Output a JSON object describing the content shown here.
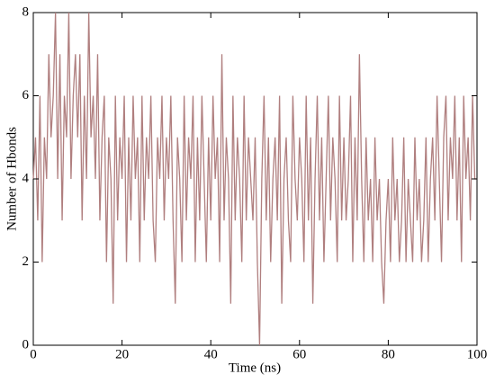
{
  "chart_data": {
    "type": "line",
    "xlabel": "Time (ns)",
    "ylabel": "Number of Hbonds",
    "color": "#b07f7f",
    "xlim": [
      0,
      100
    ],
    "xticks": [
      0,
      20,
      40,
      60,
      80,
      100
    ],
    "ylim": [
      0,
      8
    ],
    "yticks": [
      0,
      2,
      4,
      6,
      8
    ],
    "x": [
      0,
      0.5,
      1,
      1.5,
      2,
      2.5,
      3,
      3.5,
      4,
      4.5,
      5,
      5.5,
      6,
      6.5,
      7,
      7.5,
      8,
      8.5,
      9,
      9.5,
      10,
      10.5,
      11,
      11.5,
      12,
      12.5,
      13,
      13.5,
      14,
      14.5,
      15,
      15.5,
      16,
      16.5,
      17,
      17.5,
      18,
      18.5,
      19,
      19.5,
      20,
      20.5,
      21,
      21.5,
      22,
      22.5,
      23,
      23.5,
      24,
      24.5,
      25,
      25.5,
      26,
      26.5,
      27,
      27.5,
      28,
      28.5,
      29,
      29.5,
      30,
      30.5,
      31,
      31.5,
      32,
      32.5,
      33,
      33.5,
      34,
      34.5,
      35,
      35.5,
      36,
      36.5,
      37,
      37.5,
      38,
      38.5,
      39,
      39.5,
      40,
      40.5,
      41,
      41.5,
      42,
      42.5,
      43,
      43.5,
      44,
      44.5,
      45,
      45.5,
      46,
      46.5,
      47,
      47.5,
      48,
      48.5,
      49,
      49.5,
      50,
      50.5,
      51,
      51.5,
      52,
      52.5,
      53,
      53.5,
      54,
      54.5,
      55,
      55.5,
      56,
      56.5,
      57,
      57.5,
      58,
      58.5,
      59,
      59.5,
      60,
      60.5,
      61,
      61.5,
      62,
      62.5,
      63,
      63.5,
      64,
      64.5,
      65,
      65.5,
      66,
      66.5,
      67,
      67.5,
      68,
      68.5,
      69,
      69.5,
      70,
      70.5,
      71,
      71.5,
      72,
      72.5,
      73,
      73.5,
      74,
      74.5,
      75,
      75.5,
      76,
      76.5,
      77,
      77.5,
      78,
      78.5,
      79,
      79.5,
      80,
      80.5,
      81,
      81.5,
      82,
      82.5,
      83,
      83.5,
      84,
      84.5,
      85,
      85.5,
      86,
      86.5,
      87,
      87.5,
      88,
      88.5,
      89,
      89.5,
      90,
      90.5,
      91,
      91.5,
      92,
      92.5,
      93,
      93.5,
      94,
      94.5,
      95,
      95.5,
      96,
      96.5,
      97,
      97.5,
      98,
      98.5,
      99,
      99.5,
      100
    ],
    "values": [
      4,
      5,
      3,
      6,
      2,
      5,
      4,
      7,
      5,
      6,
      8,
      4,
      7,
      3,
      6,
      5,
      8,
      4,
      6,
      7,
      5,
      7,
      3,
      6,
      4,
      8,
      5,
      6,
      4,
      7,
      3,
      5,
      6,
      2,
      5,
      4,
      1,
      6,
      3,
      5,
      4,
      6,
      2,
      5,
      3,
      6,
      4,
      5,
      2,
      6,
      3,
      5,
      4,
      6,
      3,
      2,
      5,
      4,
      6,
      3,
      5,
      4,
      6,
      3,
      1,
      5,
      4,
      2,
      6,
      3,
      5,
      4,
      6,
      2,
      5,
      3,
      6,
      4,
      2,
      5,
      3,
      6,
      4,
      5,
      2,
      7,
      3,
      5,
      4,
      1,
      6,
      3,
      5,
      4,
      2,
      6,
      3,
      5,
      4,
      3,
      5,
      2,
      0,
      4,
      6,
      3,
      5,
      2,
      4,
      5,
      3,
      6,
      1,
      4,
      5,
      3,
      2,
      6,
      4,
      3,
      5,
      4,
      2,
      6,
      3,
      5,
      1,
      4,
      6,
      3,
      5,
      2,
      4,
      6,
      3,
      5,
      4,
      2,
      6,
      3,
      5,
      3,
      4,
      6,
      2,
      5,
      3,
      7,
      4,
      2,
      5,
      3,
      4,
      2,
      5,
      3,
      4,
      2,
      1,
      3,
      4,
      2,
      5,
      3,
      4,
      2,
      3,
      5,
      2,
      4,
      3,
      2,
      5,
      3,
      4,
      2,
      3,
      5,
      2,
      4,
      5,
      3,
      6,
      4,
      2,
      5,
      6,
      3,
      5,
      4,
      6,
      3,
      5,
      2,
      6,
      4,
      5,
      3,
      6,
      4,
      4
    ]
  }
}
